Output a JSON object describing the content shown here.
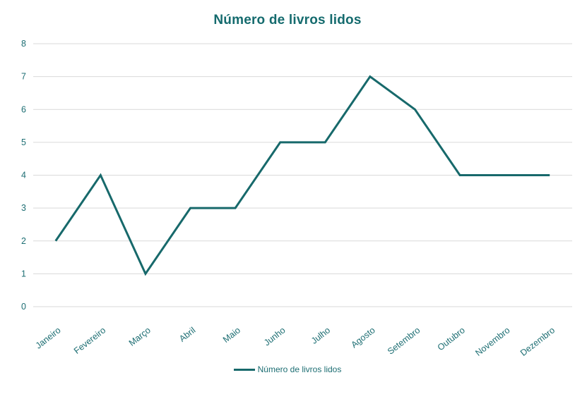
{
  "title": "Número de livros lidos",
  "legend": {
    "label": "Número de livros lidos",
    "position": "bottom-center"
  },
  "colors": {
    "line": "#17696B",
    "title_text": "#156B6E",
    "axis_text": "#1D6E73",
    "gridline": "#D9D9D9",
    "background": "#FFFFFF"
  },
  "chart_data": {
    "type": "line",
    "title": "Número de livros lidos",
    "categories": [
      "Janeiro",
      "Fevereiro",
      "Março",
      "Abril",
      "Maio",
      "Junho",
      "Julho",
      "Agosto",
      "Setembro",
      "Outubro",
      "Novembro",
      "Dezembro"
    ],
    "series": [
      {
        "name": "Número de livros lidos",
        "values": [
          2,
          4,
          1,
          3,
          3,
          5,
          5,
          7,
          6,
          4,
          4,
          4
        ]
      }
    ],
    "xlabel": "",
    "ylabel": "",
    "ylim": [
      0,
      8
    ],
    "y_tick_step": 1,
    "y_tick_labels": [
      "0",
      "1",
      "2",
      "3",
      "4",
      "5",
      "6",
      "7",
      "8"
    ],
    "grid": "horizontal",
    "x_label_rotation_deg": -38,
    "legend_position": "bottom"
  }
}
